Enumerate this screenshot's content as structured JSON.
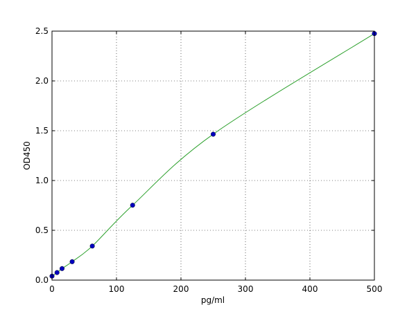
{
  "chart_data": {
    "type": "scatter",
    "title": "",
    "xlabel": "pg/ml",
    "ylabel": "OD450",
    "xlim": [
      0,
      500
    ],
    "ylim": [
      0,
      2.5
    ],
    "xticks": [
      "0",
      "100",
      "200",
      "300",
      "400",
      "500"
    ],
    "yticks": [
      "0.0",
      "0.5",
      "1.0",
      "1.5",
      "2.0",
      "2.5"
    ],
    "grid": true,
    "x": [
      0,
      7.8,
      15.6,
      31.25,
      62.5,
      125,
      250,
      500
    ],
    "y": [
      0.04,
      0.076,
      0.116,
      0.185,
      0.342,
      0.752,
      1.465,
      2.475
    ],
    "point_color": "#0000bf",
    "curve_color": "#2ca02c",
    "curve": "fitted standard curve"
  }
}
